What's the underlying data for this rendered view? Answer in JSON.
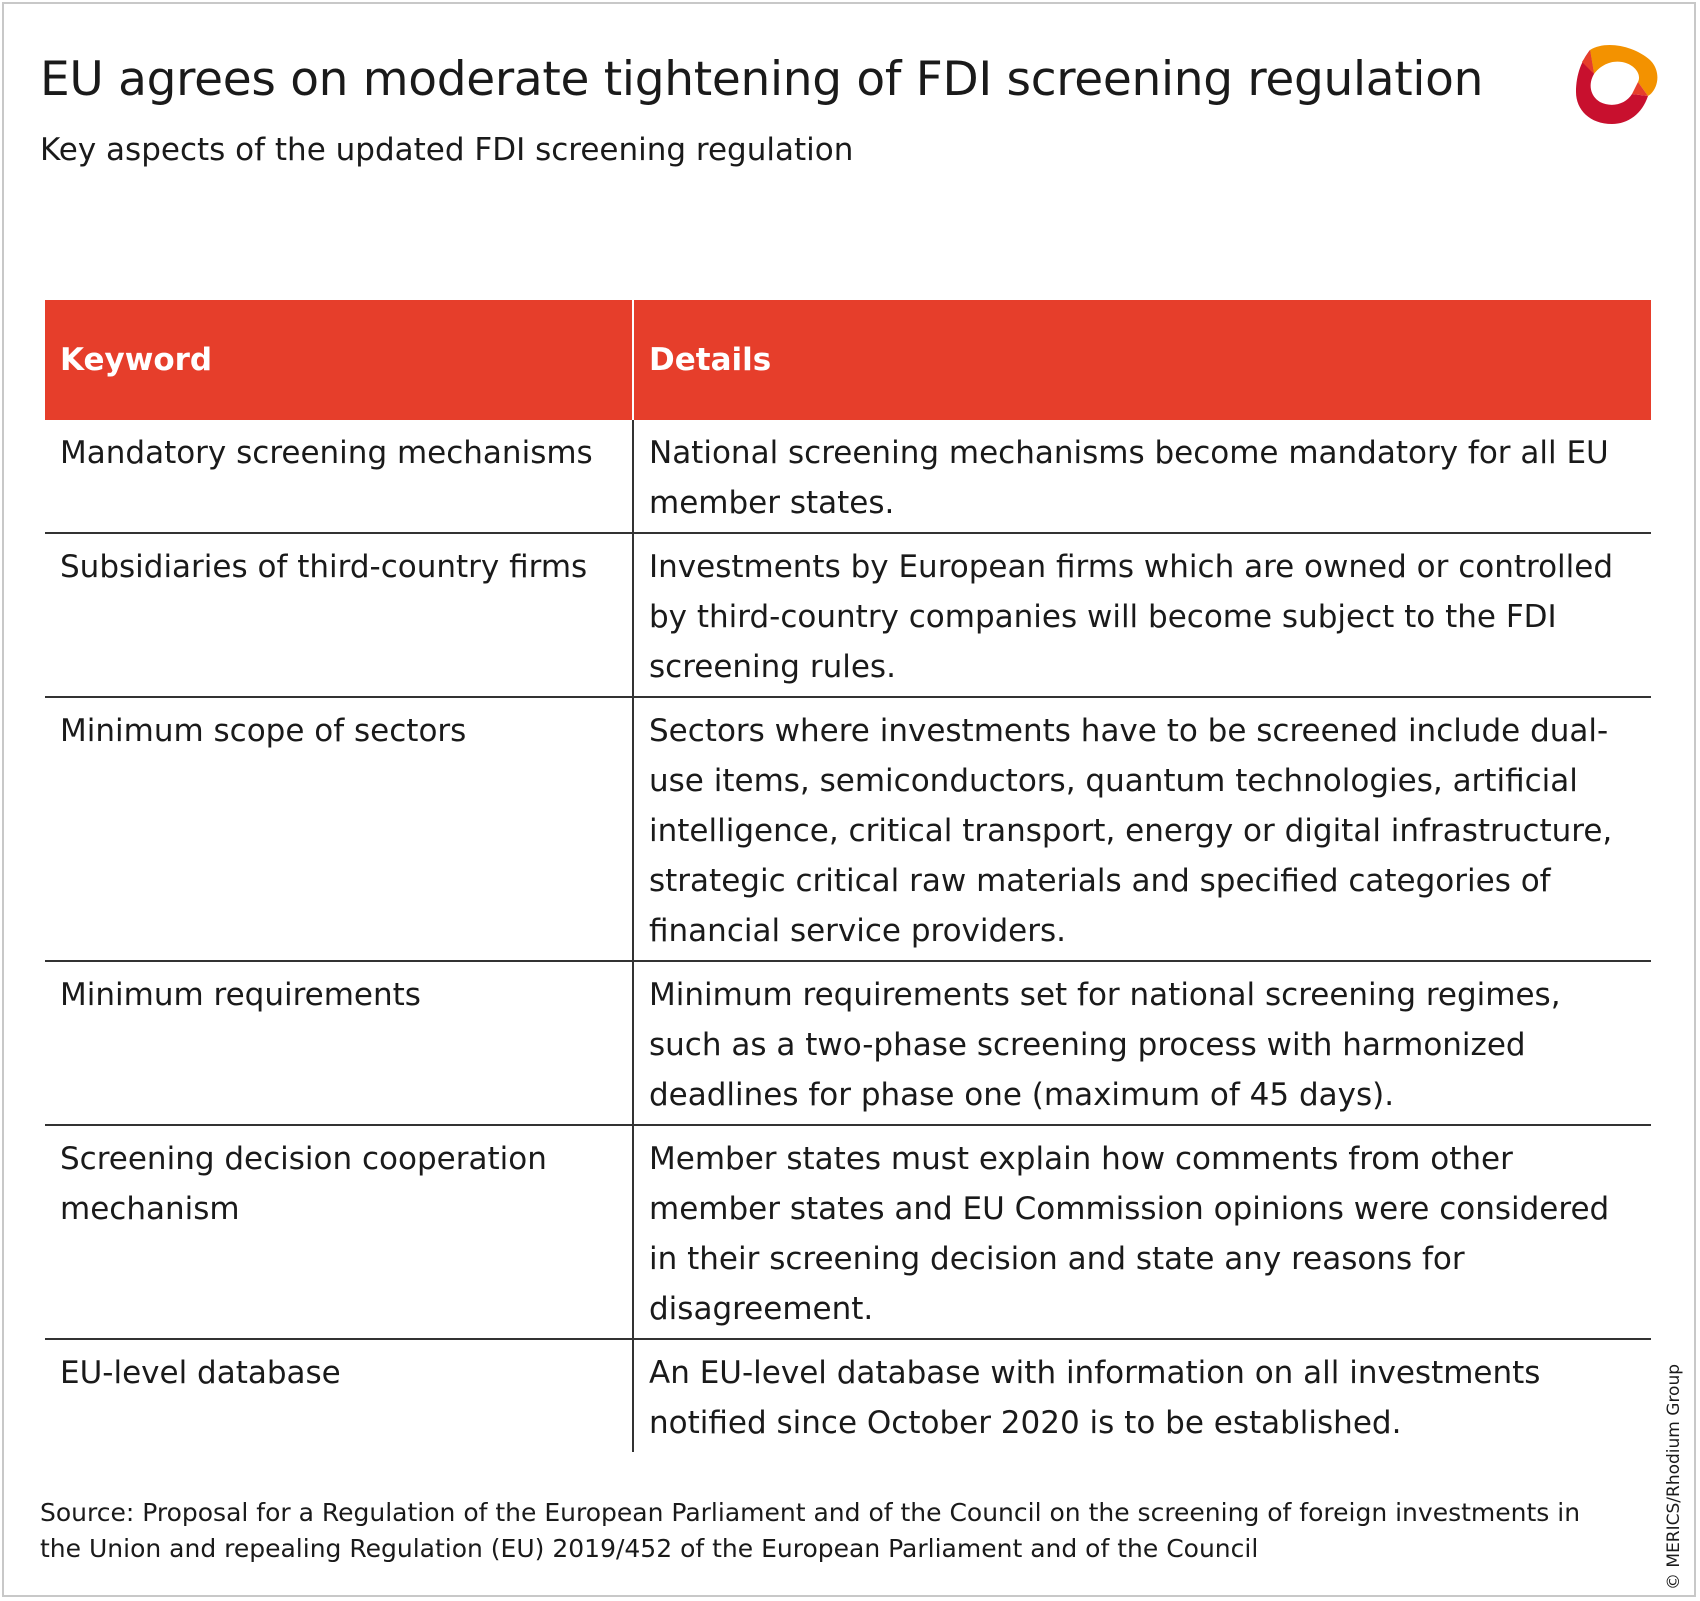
{
  "header": {
    "title": "EU agrees on moderate tightening of FDI screening regulation",
    "subtitle": "Key aspects of the updated FDI screening regulation"
  },
  "brand": {
    "logo_icon": "merics-logo-icon",
    "colors": {
      "accent_red": "#e63e2b",
      "logo_orange": "#f39200",
      "logo_crimson": "#c8102e"
    }
  },
  "table": {
    "headers": [
      "Keyword",
      "Details"
    ],
    "rows": [
      {
        "keyword": "Mandatory screening mechanisms",
        "details": "National screening mechanisms become mandatory for all EU member states."
      },
      {
        "keyword": "Subsidiaries of third-country firms",
        "details": "Investments by European firms which are owned or controlled by third-country companies will become subject to the FDI screening rules."
      },
      {
        "keyword": "Minimum scope of sectors",
        "details": "Sectors where investments have to be screened include dual-use items, semiconductors, quantum technologies, artificial intelligence, critical transport, energy or digital infrastructure, strategic critical raw materials and specified categories of financial service providers."
      },
      {
        "keyword": "Minimum requirements",
        "details": "Minimum requirements set for national screening regimes, such as a two-phase screening process with harmonized deadlines for phase one (maximum of 45 days)."
      },
      {
        "keyword": "Screening decision cooperation mechanism",
        "details": "Member states must explain how comments from other member states and EU Commission opinions were considered in their screening decision and state any reasons for disagreement."
      },
      {
        "keyword": "EU-level database",
        "details": "An EU-level database with information on all investments notified since October 2020 is to be established."
      }
    ]
  },
  "footer": {
    "source": "Source: Proposal for a Regulation of the European Parliament and of the Council on the screening of foreign investments in the Union and repealing Regulation (EU) 2019/452 of the European Parliament and of the Council",
    "copyright": "© MERICS/Rhodium Group"
  }
}
